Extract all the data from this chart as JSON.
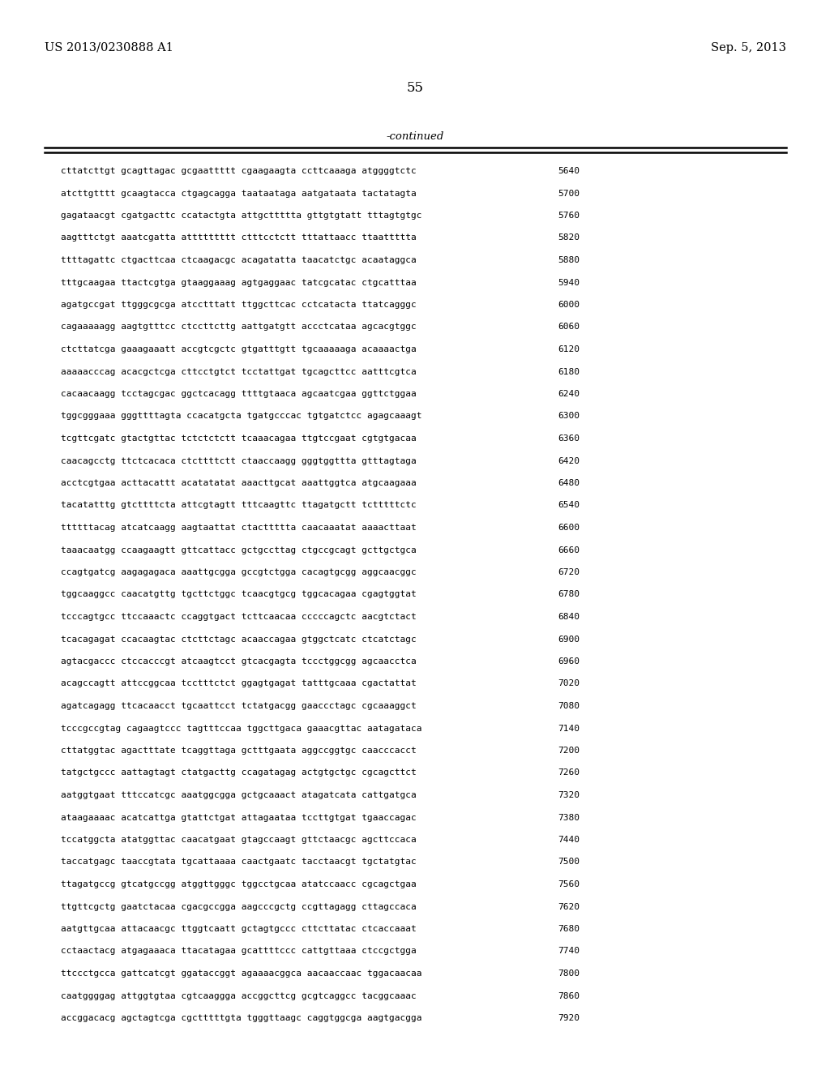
{
  "header_left": "US 2013/0230888 A1",
  "header_right": "Sep. 5, 2013",
  "page_number": "55",
  "continued_label": "-continued",
  "background_color": "#ffffff",
  "text_color": "#000000",
  "sequence_lines": [
    [
      "cttatcttgt gcagttagac gcgaattttt cgaagaagta ccttcaaaga atggggtctc",
      "5640"
    ],
    [
      "atcttgtttt gcaagtacca ctgagcagga taataataga aatgataata tactatagta",
      "5700"
    ],
    [
      "gagataacgt cgatgacttc ccatactgta attgcttttta gttgtgtatt tttagtgtgc",
      "5760"
    ],
    [
      "aagtttctgt aaatcgatta attttttttt ctttcctctt tttattaacc ttaattttta",
      "5820"
    ],
    [
      "ttttagattc ctgacttcaa ctcaagacgc acagatatta taacatctgc acaataggca",
      "5880"
    ],
    [
      "tttgcaagaa ttactcgtga gtaaggaaag agtgaggaac tatcgcatac ctgcatttaa",
      "5940"
    ],
    [
      "agatgccgat ttgggcgcga atcctttatt ttggcttcac cctcatacta ttatcagggc",
      "6000"
    ],
    [
      "cagaaaaagg aagtgtttcc ctccttcttg aattgatgtt accctcataa agcacgtggc",
      "6060"
    ],
    [
      "ctcttatcga gaaagaaatt accgtcgctc gtgatttgtt tgcaaaaaga acaaaactga",
      "6120"
    ],
    [
      "aaaaacccag acacgctcga cttcctgtct tcctattgat tgcagcttcc aatttcgtca",
      "6180"
    ],
    [
      "cacaacaagg tcctagcgac ggctcacagg ttttgtaaca agcaatcgaa ggttctggaa",
      "6240"
    ],
    [
      "tggcgggaaa gggttttagta ccacatgcta tgatgcccac tgtgatctcc agagcaaagt",
      "6300"
    ],
    [
      "tcgttcgatc gtactgttac tctctctctt tcaaacagaa ttgtccgaat cgtgtgacaa",
      "6360"
    ],
    [
      "caacagcctg ttctcacaca ctcttttctt ctaaccaagg gggtggttta gtttagtaga",
      "6420"
    ],
    [
      "acctcgtgaa acttacattt acatatatat aaacttgcat aaattggtca atgcaagaaa",
      "6480"
    ],
    [
      "tacatatttg gtcttttcta attcgtagtt tttcaagttc ttagatgctt tctttttctc",
      "6540"
    ],
    [
      "ttttttacag atcatcaagg aagtaattat ctacttttta caacaaatat aaaacttaat",
      "6600"
    ],
    [
      "taaacaatgg ccaagaagtt gttcattacc gctgccttag ctgccgcagt gcttgctgca",
      "6660"
    ],
    [
      "ccagtgatcg aagagagaca aaattgcgga gccgtctgga cacagtgcgg aggcaacggc",
      "6720"
    ],
    [
      "tggcaaggcc caacatgttg tgcttctggc tcaacgtgcg tggcacagaa cgagtggtat",
      "6780"
    ],
    [
      "tcccagtgcc ttccaaactc ccaggtgact tcttcaacaa cccccagctc aacgtctact",
      "6840"
    ],
    [
      "tcacagagat ccacaagtac ctcttctagc acaaccagaa gtggctcatc ctcatctagc",
      "6900"
    ],
    [
      "agtacgaccc ctccacccgt atcaagtcct gtcacgagta tccctggcgg agcaacctca",
      "6960"
    ],
    [
      "acagccagtt attccggcaa tcctttctct ggagtgagat tatttgcaaa cgactattat",
      "7020"
    ],
    [
      "agatcagagg ttcacaacct tgcaattcct tctatgacgg gaaccctagc cgcaaaggct",
      "7080"
    ],
    [
      "tcccgccgtag cagaagtccc tagtttccaa tggcttgaca gaaacgttac aatagataca",
      "7140"
    ],
    [
      "cttatggtac agactttate tcaggttaga gctttgaata aggccggtgc caacccacct",
      "7200"
    ],
    [
      "tatgctgccc aattagtagt ctatgacttg ccagatagag actgtgctgc cgcagcttct",
      "7260"
    ],
    [
      "aatggtgaat tttccatcgc aaatggcgga gctgcaaact atagatcata cattgatgca",
      "7320"
    ],
    [
      "ataagaaaac acatcattga gtattctgat attagaataa tccttgtgat tgaaccagac",
      "7380"
    ],
    [
      "tccatggcta atatggttac caacatgaat gtagccaagt gttctaacgc agcttccaca",
      "7440"
    ],
    [
      "taccatgagc taaccgtata tgcattaaaa caactgaatc tacctaacgt tgctatgtac",
      "7500"
    ],
    [
      "ttagatgccg gtcatgccgg atggttgggc tggcctgcaa atatccaacc cgcagctgaa",
      "7560"
    ],
    [
      "ttgttcgctg gaatctacaa cgacgccgga aagcccgctg ccgttagagg cttagccaca",
      "7620"
    ],
    [
      "aatgttgcaa attacaacgc ttggtcaatt gctagtgccc cttcttatac ctcaccaaat",
      "7680"
    ],
    [
      "cctaactacg atgagaaaca ttacatagaa gcattttccc cattgttaaa ctccgctgga",
      "7740"
    ],
    [
      "ttccctgcca gattcatcgt ggataccggt agaaaacggca aacaaccaac tggacaacaa",
      "7800"
    ],
    [
      "caatggggag attggtgtaa cgtcaaggga accggcttcg gcgtcaggcc tacggcaaac",
      "7860"
    ],
    [
      "accggacacg agctagtcga cgctttttgta tgggttaagc caggtggcga aagtgacgga",
      "7920"
    ]
  ]
}
